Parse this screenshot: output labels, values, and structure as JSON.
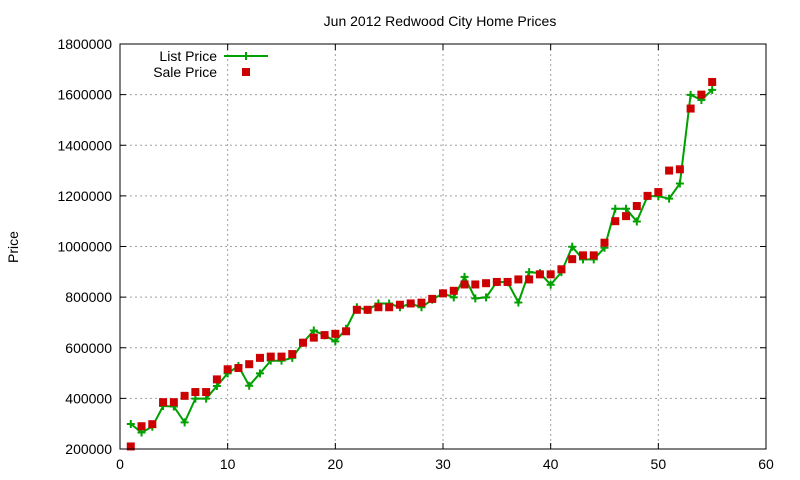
{
  "chart_data": {
    "type": "line",
    "title": "Jun 2012 Redwood City Home Prices",
    "xlabel": "",
    "ylabel": "Price",
    "xlim": [
      0,
      60
    ],
    "ylim": [
      200000,
      1800000
    ],
    "xticks": [
      0,
      10,
      20,
      30,
      40,
      50,
      60
    ],
    "yticks": [
      200000,
      400000,
      600000,
      800000,
      1000000,
      1200000,
      1400000,
      1600000,
      1800000
    ],
    "grid": true,
    "legend": "top-left",
    "x": [
      1,
      2,
      3,
      4,
      5,
      6,
      7,
      8,
      9,
      10,
      11,
      12,
      13,
      14,
      15,
      16,
      17,
      18,
      19,
      20,
      21,
      22,
      23,
      24,
      25,
      26,
      27,
      28,
      29,
      30,
      31,
      32,
      33,
      34,
      35,
      36,
      37,
      38,
      39,
      40,
      41,
      42,
      43,
      44,
      45,
      46,
      47,
      48,
      49,
      50,
      51,
      52,
      53,
      54,
      55
    ],
    "series": [
      {
        "name": "List Price",
        "style": "lines-points",
        "color": "#00a000",
        "values": [
          299000,
          265000,
          288000,
          370000,
          368000,
          305000,
          399000,
          399000,
          449000,
          499000,
          528000,
          450000,
          499000,
          549000,
          549000,
          560000,
          620000,
          668000,
          649000,
          625000,
          675000,
          760000,
          749000,
          775000,
          775000,
          760000,
          775000,
          760000,
          790000,
          815000,
          799000,
          880000,
          795000,
          799000,
          860000,
          859000,
          779000,
          899000,
          895000,
          849000,
          899000,
          999000,
          949000,
          949000,
          995000,
          1149000,
          1149000,
          1099000,
          1199000,
          1199000,
          1189000,
          1249000,
          1599000,
          1579000,
          1619000
        ]
      },
      {
        "name": "Sale Price",
        "style": "points",
        "color": "#cc0000",
        "values": [
          210000,
          290000,
          298000,
          385000,
          385000,
          410000,
          425000,
          425000,
          475000,
          515000,
          520000,
          535000,
          560000,
          565000,
          565000,
          575000,
          620000,
          640000,
          650000,
          655000,
          665000,
          750000,
          750000,
          760000,
          760000,
          770000,
          775000,
          778000,
          793000,
          815000,
          825000,
          850000,
          850000,
          855000,
          860000,
          860000,
          870000,
          870000,
          890000,
          890000,
          910000,
          950000,
          965000,
          965000,
          1015000,
          1100000,
          1120000,
          1160000,
          1200000,
          1215000,
          1300000,
          1305000,
          1545000,
          1600000,
          1650000
        ]
      }
    ]
  }
}
